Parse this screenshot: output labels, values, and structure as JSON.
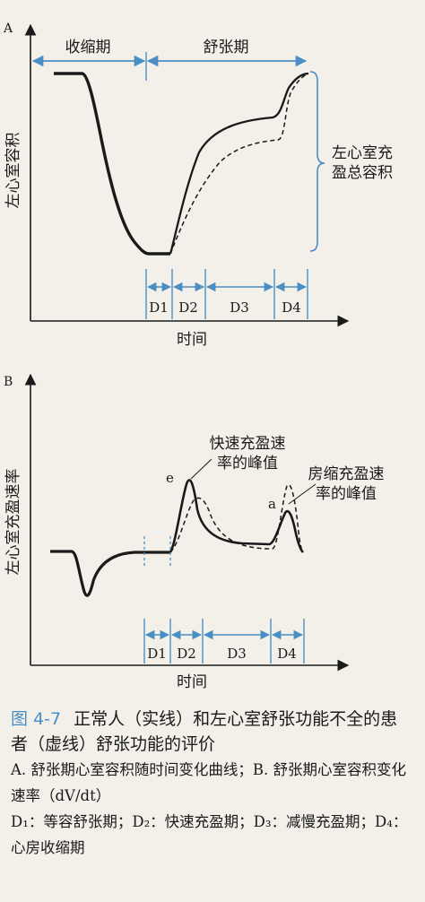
{
  "colors": {
    "background": "#f3f0e9",
    "ink": "#1a1a1a",
    "phase_arrow": "#4a8ec4",
    "figure_number": "#4a8ec4"
  },
  "panel_a": {
    "letter": "A",
    "ylabel": "左心室容积",
    "xlabel": "时间",
    "phase_systole": "收缩期",
    "phase_diastole": "舒张期",
    "brace_label_line1": "左心室充",
    "brace_label_line2": "盈总容积",
    "d_labels": [
      "D1",
      "D2",
      "D3",
      "D4"
    ]
  },
  "panel_b": {
    "letter": "B",
    "ylabel": "左心室充盈速率",
    "xlabel": "时间",
    "e_label": "e",
    "a_label": "a",
    "e_note_line1": "快速充盈速",
    "e_note_line2": "率的峰值",
    "a_note_line1": "房缩充盈速",
    "a_note_line2": "率的峰值",
    "d_labels": [
      "D1",
      "D2",
      "D3",
      "D4"
    ]
  },
  "caption": {
    "number": "图 4-7",
    "title": "正常人（实线）和左心室舒张功能不全的患者（虚线）舒张功能的评价",
    "line_a": "A. 舒张期心室容积随时间变化曲线；B. 舒张期心室容积变化速率（dV/dt）",
    "line_d": "D₁：等容舒张期；D₂：快速充盈期；D₃：减慢充盈期；D₄：心房收缩期"
  },
  "chart_data": [
    {
      "type": "line",
      "title": "",
      "xlabel": "时间",
      "ylabel": "左心室容积",
      "phases": [
        "D1",
        "D2",
        "D3",
        "D4"
      ],
      "series": [
        {
          "style": "solid"
        },
        {
          "style": "dashed"
        }
      ],
      "grid": false
    },
    {
      "type": "line",
      "title": "",
      "xlabel": "时间",
      "ylabel": "左心室充盈速率",
      "phases": [
        "D1",
        "D2",
        "D3",
        "D4"
      ],
      "peaks": [
        "e",
        "a"
      ],
      "series": [
        {
          "style": "solid"
        },
        {
          "style": "dashed"
        }
      ],
      "grid": false
    }
  ]
}
